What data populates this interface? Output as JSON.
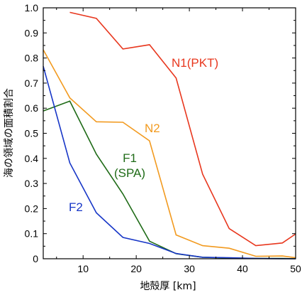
{
  "chart_data": {
    "type": "line",
    "xlabel": "地殻厚 [km]",
    "ylabel": "海の領域の面積割合",
    "xlim": [
      2.5,
      50
    ],
    "ylim": [
      0,
      1.0
    ],
    "x_ticks": [
      10,
      20,
      30,
      40,
      50
    ],
    "y_ticks": [
      0,
      0.1,
      0.2,
      0.3,
      0.4,
      0.5,
      0.6,
      0.7,
      0.8,
      0.9,
      1.0
    ],
    "x_tick_labels": [
      "10",
      "20",
      "30",
      "40",
      "50"
    ],
    "y_tick_labels": [
      "0",
      "0.1",
      "0.2",
      "0.3",
      "0.4",
      "0.5",
      "0.6",
      "0.7",
      "0.8",
      "0.9",
      "1.0"
    ],
    "grid": false,
    "series": [
      {
        "name": "N1(PKT)",
        "color": "#e8371e",
        "x": [
          7.5,
          12.5,
          17.5,
          22.5,
          27.5,
          32.5,
          37.5,
          42.5,
          47.5,
          50
        ],
        "y": [
          0.982,
          0.958,
          0.836,
          0.853,
          0.72,
          0.337,
          0.12,
          0.052,
          0.063,
          0.099
        ]
      },
      {
        "name": "N2",
        "color": "#f29a1f",
        "x": [
          2.5,
          7.5,
          12.5,
          17.5,
          22.5,
          27.5,
          32.5,
          37.5,
          42.5,
          47.5,
          50
        ],
        "y": [
          0.833,
          0.641,
          0.546,
          0.544,
          0.47,
          0.095,
          0.052,
          0.042,
          0.01,
          0.011,
          0.004
        ]
      },
      {
        "name": "F1 (SPA)",
        "color": "#1f6b17",
        "x": [
          2.5,
          7.5,
          12.5,
          17.5,
          22.5,
          27.5,
          32.5,
          37.5,
          42.5,
          47.5,
          50
        ],
        "y": [
          0.589,
          0.628,
          0.417,
          0.258,
          0.07,
          0.02,
          0.006,
          0.003,
          0.001,
          0.001,
          0.0
        ]
      },
      {
        "name": "F2",
        "color": "#1736c7",
        "x": [
          2.5,
          7.5,
          12.5,
          17.5,
          22.5,
          27.5,
          32.5,
          37.5,
          42.5,
          47.5,
          50
        ],
        "y": [
          0.767,
          0.382,
          0.183,
          0.085,
          0.061,
          0.021,
          0.006,
          0.004,
          0.001,
          0.0,
          0.0
        ]
      }
    ],
    "annotations": [
      {
        "text": "N1(PKT)",
        "color": "#e8371e"
      },
      {
        "text": "N2",
        "color": "#f29a1f"
      },
      {
        "text": "F1",
        "color": "#1f6b17"
      },
      {
        "text": "(SPA)",
        "color": "#1f6b17"
      },
      {
        "text": "F2",
        "color": "#1736c7"
      }
    ]
  }
}
